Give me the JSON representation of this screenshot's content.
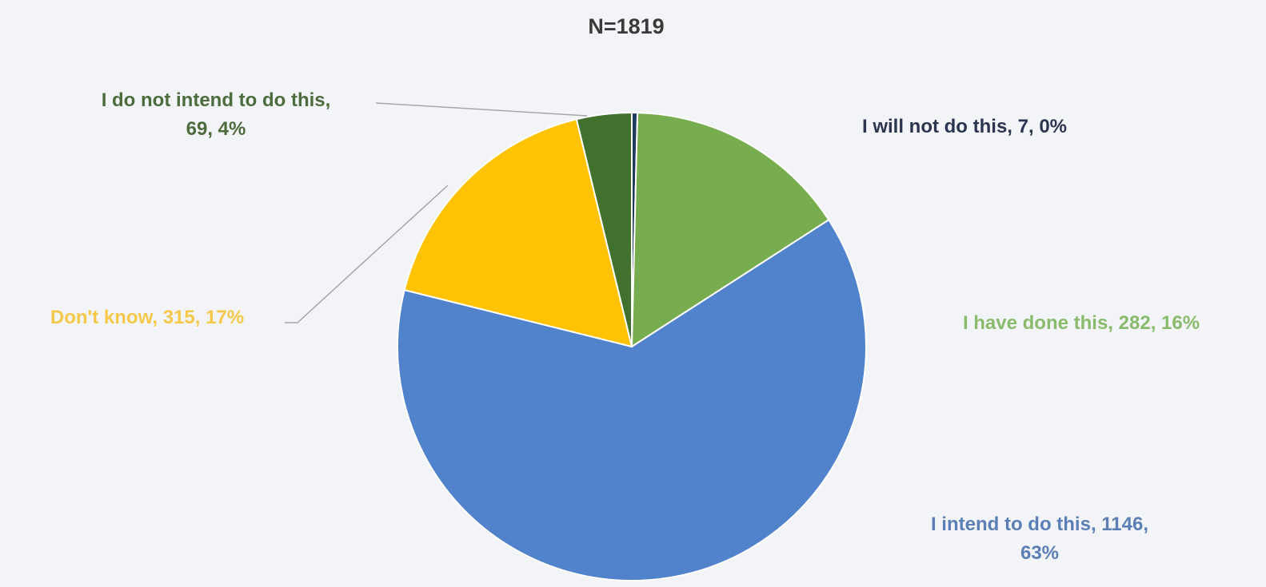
{
  "chart_data": {
    "type": "pie",
    "title": "N=1819",
    "title_color": "#3a3a3a",
    "slices": [
      {
        "label": "I will not do this",
        "value": 7,
        "percent": "0%",
        "color": "#1f3a5f",
        "label_color": "#2b3550",
        "text_lines": [
          "I will not do this, 7, 0%"
        ]
      },
      {
        "label": "I have done this",
        "value": 282,
        "percent": "16%",
        "color": "#78ad4f",
        "label_color": "#8aba6b",
        "text_lines": [
          "I have done this, 282, 16%"
        ]
      },
      {
        "label": "I intend to do this",
        "value": 1146,
        "percent": "63%",
        "color": "#5182cc",
        "label_color": "#5b7fb5",
        "text_lines": [
          "I intend to do this, 1146,",
          "63%"
        ]
      },
      {
        "label": "Don't know",
        "value": 315,
        "percent": "17%",
        "color": "#ffc304",
        "label_color": "#f5c84a",
        "text_lines": [
          "Don't know, 315, 17%"
        ]
      },
      {
        "label": "I do not intend to do this",
        "value": 69,
        "percent": "4%",
        "color": "#42702e",
        "label_color": "#4d6b3d",
        "text_lines": [
          "I do not intend to do this,",
          "69, 4%"
        ]
      }
    ]
  }
}
